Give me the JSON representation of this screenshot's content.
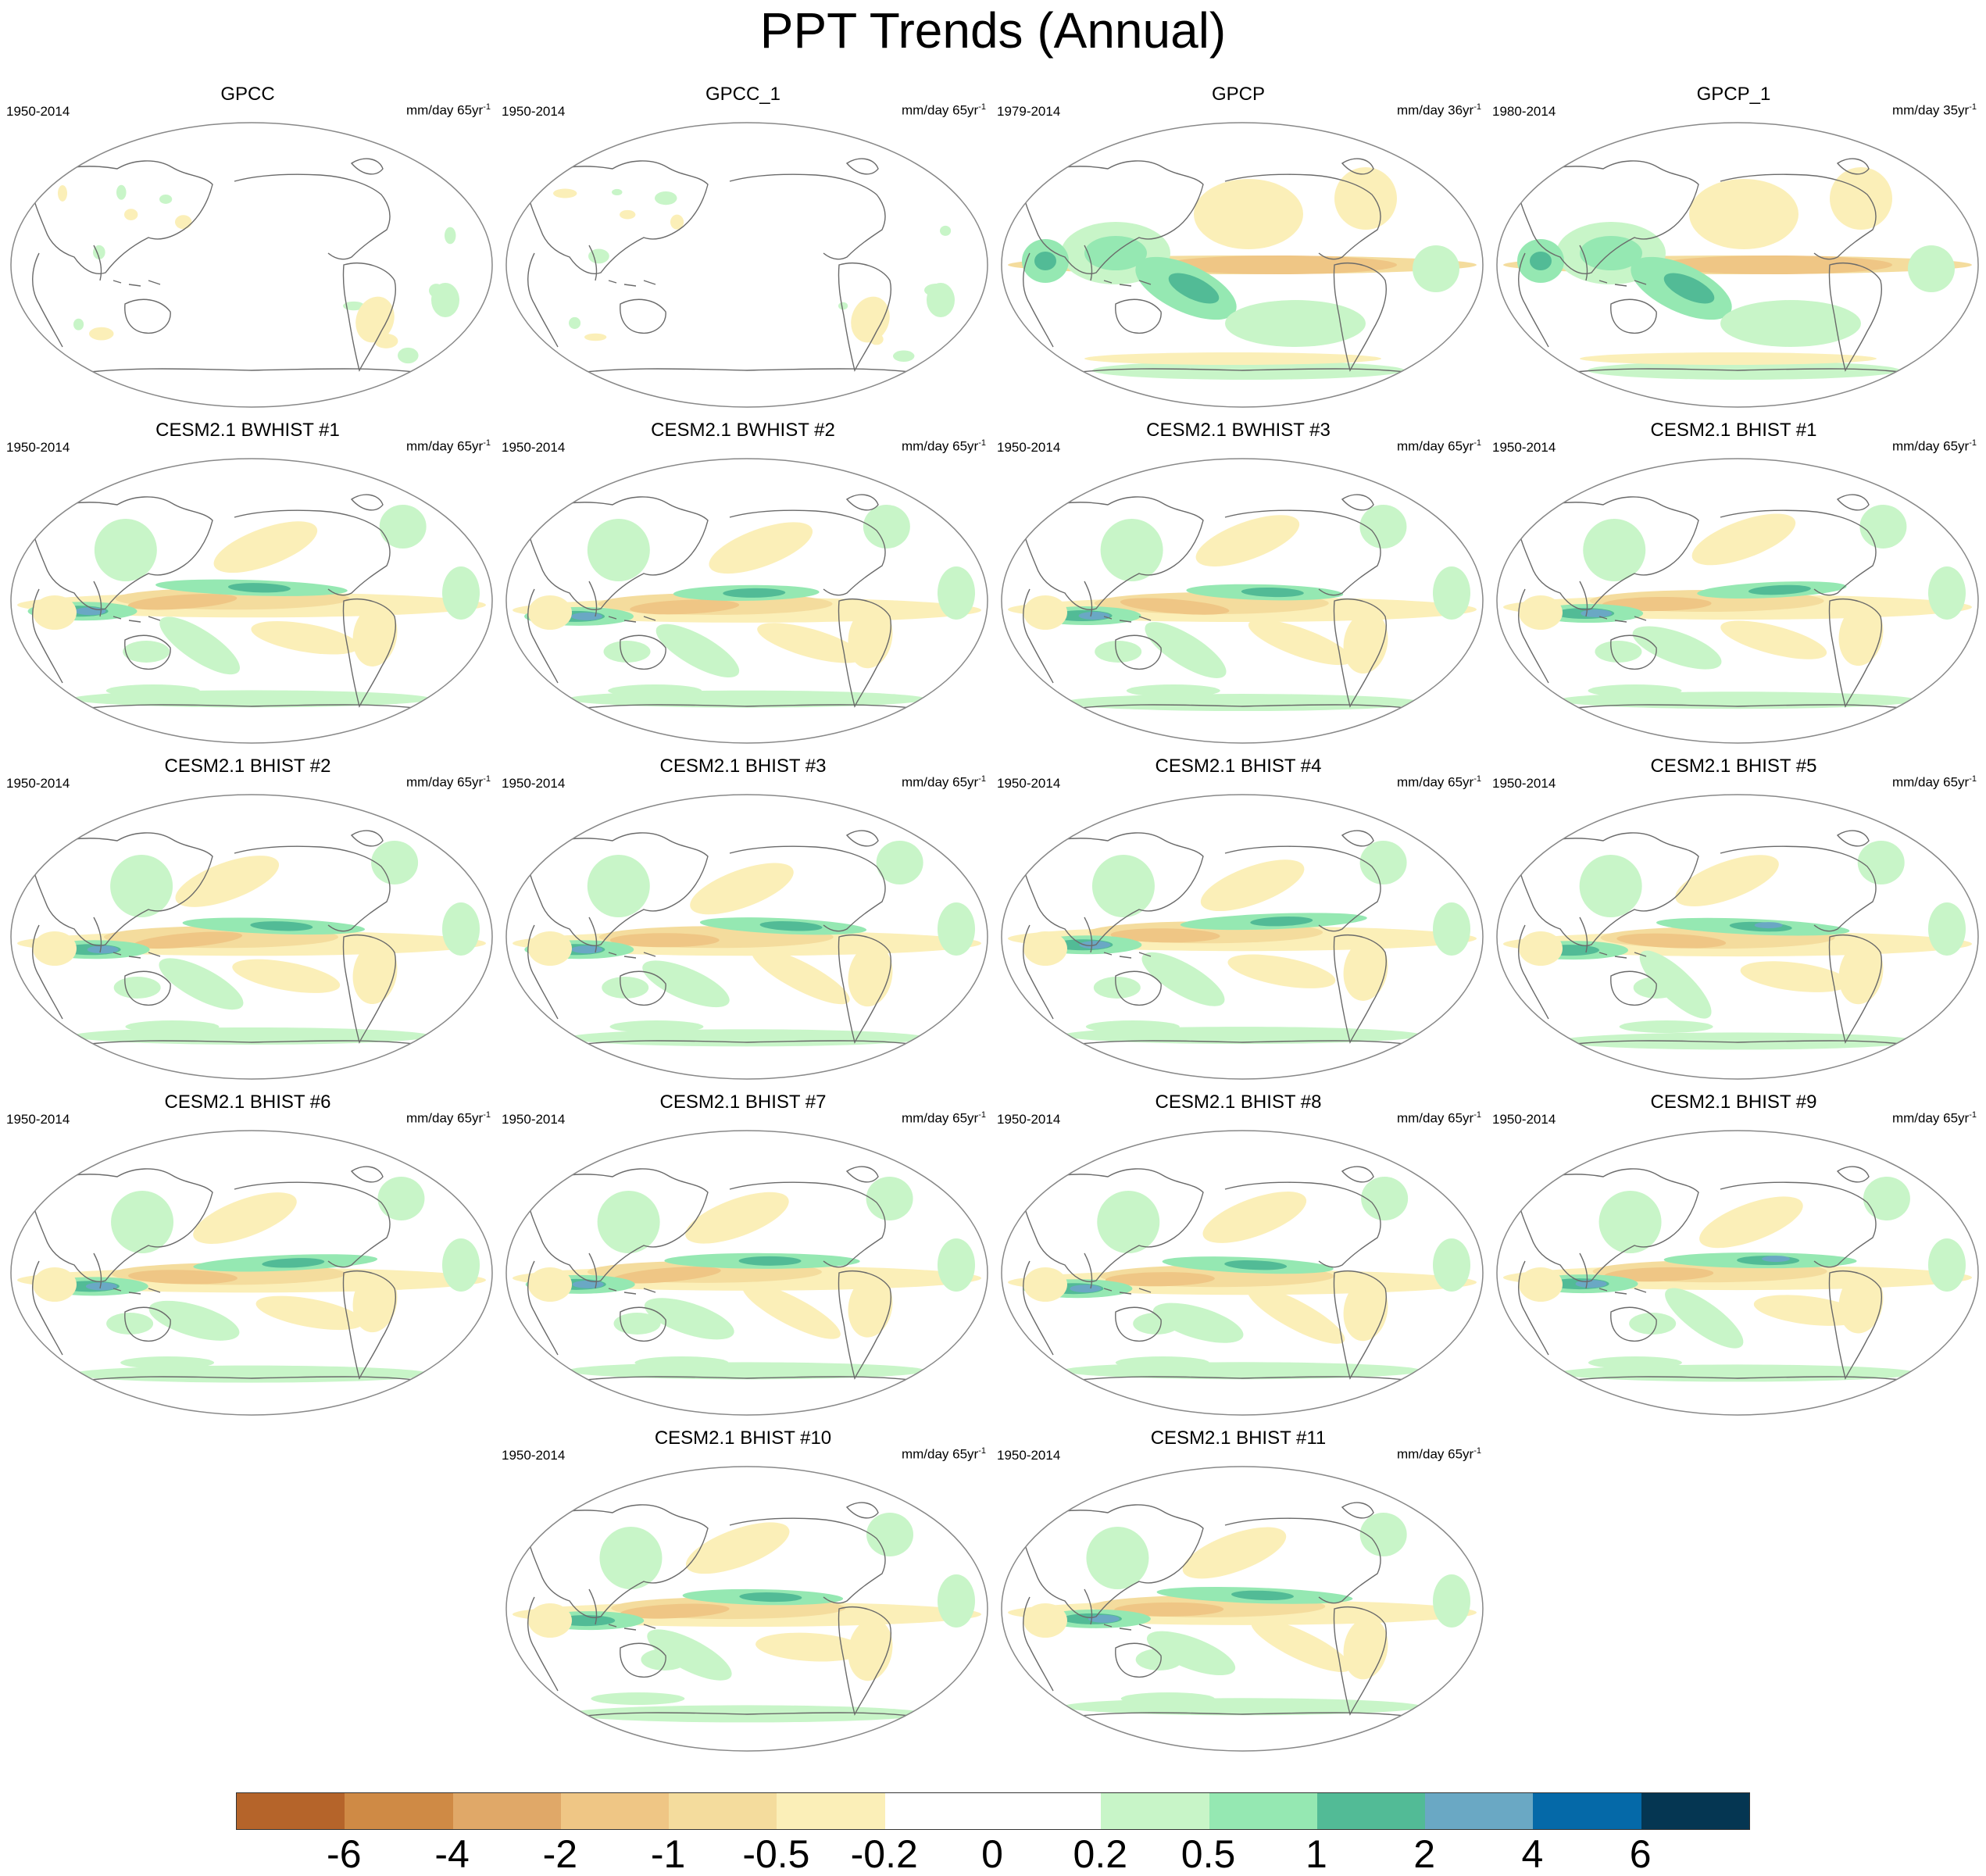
{
  "title": "PPT Trends (Annual)",
  "panels": [
    {
      "title": "GPCC",
      "period": "1950-2014",
      "units": "mm/day 65yr",
      "pattern": "obs"
    },
    {
      "title": "GPCC_1",
      "period": "1950-2014",
      "units": "mm/day 65yr",
      "pattern": "obs"
    },
    {
      "title": "GPCP",
      "period": "1979-2014",
      "units": "mm/day 36yr",
      "pattern": "gpcp"
    },
    {
      "title": "GPCP_1",
      "period": "1980-2014",
      "units": "mm/day 35yr",
      "pattern": "gpcp"
    },
    {
      "title": "CESM2.1 BWHIST #1",
      "period": "1950-2014",
      "units": "mm/day 65yr",
      "pattern": "model"
    },
    {
      "title": "CESM2.1 BWHIST #2",
      "period": "1950-2014",
      "units": "mm/day 65yr",
      "pattern": "model"
    },
    {
      "title": "CESM2.1 BWHIST #3",
      "period": "1950-2014",
      "units": "mm/day 65yr",
      "pattern": "model"
    },
    {
      "title": "CESM2.1 BHIST #1",
      "period": "1950-2014",
      "units": "mm/day 65yr",
      "pattern": "model"
    },
    {
      "title": "CESM2.1 BHIST #2",
      "period": "1950-2014",
      "units": "mm/day 65yr",
      "pattern": "model"
    },
    {
      "title": "CESM2.1 BHIST #3",
      "period": "1950-2014",
      "units": "mm/day 65yr",
      "pattern": "model"
    },
    {
      "title": "CESM2.1 BHIST #4",
      "period": "1950-2014",
      "units": "mm/day 65yr",
      "pattern": "model"
    },
    {
      "title": "CESM2.1 BHIST #5",
      "period": "1950-2014",
      "units": "mm/day 65yr",
      "pattern": "model"
    },
    {
      "title": "CESM2.1 BHIST #6",
      "period": "1950-2014",
      "units": "mm/day 65yr",
      "pattern": "model"
    },
    {
      "title": "CESM2.1 BHIST #7",
      "period": "1950-2014",
      "units": "mm/day 65yr",
      "pattern": "model"
    },
    {
      "title": "CESM2.1 BHIST #8",
      "period": "1950-2014",
      "units": "mm/day 65yr",
      "pattern": "model"
    },
    {
      "title": "CESM2.1 BHIST #9",
      "period": "1950-2014",
      "units": "mm/day 65yr",
      "pattern": "model"
    },
    {
      "title": "CESM2.1 BHIST #10",
      "period": "1950-2014",
      "units": "mm/day 65yr",
      "pattern": "model"
    },
    {
      "title": "CESM2.1 BHIST #11",
      "period": "1950-2014",
      "units": "mm/day 65yr",
      "pattern": "model"
    }
  ],
  "units_exponent": "-1",
  "colorbar": {
    "labels": [
      "-6",
      "-4",
      "-2",
      "-1",
      "-0.5",
      "-0.2",
      "0",
      "0.2",
      "0.5",
      "1",
      "2",
      "4",
      "6"
    ],
    "colors": [
      "#b5642a",
      "#cf8a45",
      "#e0a868",
      "#efc685",
      "#f4dc9d",
      "#fbefb8",
      "#ffffff",
      "#ffffff",
      "#c8f5c8",
      "#95e8b2",
      "#52bb96",
      "#6aa8c4",
      "#0569a8",
      "#053652"
    ]
  }
}
